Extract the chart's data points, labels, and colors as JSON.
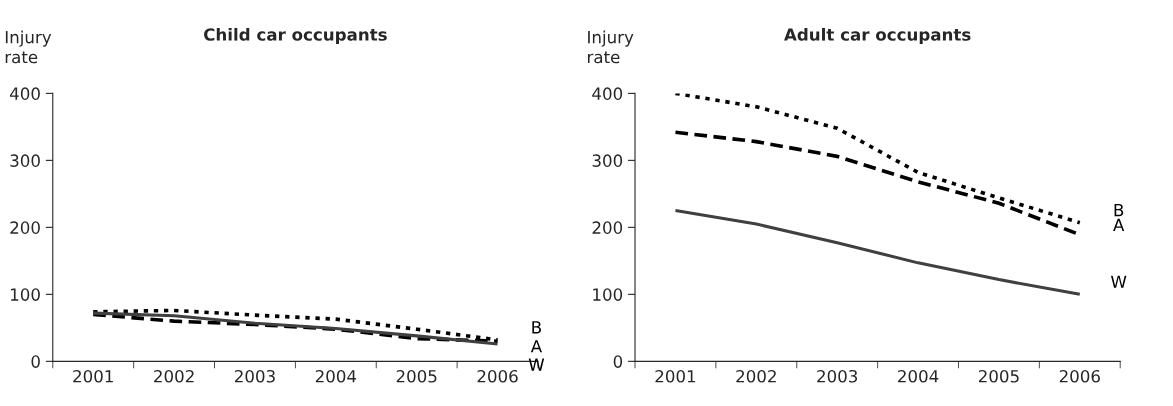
{
  "chart_data": [
    {
      "type": "line",
      "title": "Child car occupants",
      "ylabel": "Injury rate",
      "categories": [
        "2001",
        "2002",
        "2003",
        "2004",
        "2005",
        "2006"
      ],
      "ylim": [
        0,
        400
      ],
      "yticks": [
        0,
        100,
        200,
        300,
        400
      ],
      "legend": false,
      "grid": false,
      "series": [
        {
          "name": "B",
          "color": "#000000",
          "line_style": "dotted",
          "values": [
            74,
            76,
            69,
            63,
            48,
            32
          ]
        },
        {
          "name": "A",
          "color": "#000000",
          "line_style": "dashed",
          "values": [
            70,
            60,
            55,
            48,
            34,
            30
          ]
        },
        {
          "name": "W",
          "color": "#404040",
          "line_style": "solid",
          "values": [
            72,
            68,
            57,
            49,
            38,
            26
          ]
        }
      ]
    },
    {
      "type": "line",
      "title": "Adult car occupants",
      "ylabel": "Injury rate",
      "categories": [
        "2001",
        "2002",
        "2003",
        "2004",
        "2005",
        "2006"
      ],
      "ylim": [
        0,
        400
      ],
      "yticks": [
        0,
        100,
        200,
        300,
        400
      ],
      "legend": false,
      "grid": false,
      "series": [
        {
          "name": "B",
          "color": "#000000",
          "line_style": "dotted",
          "values": [
            400,
            380,
            348,
            282,
            244,
            207
          ]
        },
        {
          "name": "A",
          "color": "#000000",
          "line_style": "dashed",
          "values": [
            342,
            328,
            306,
            268,
            236,
            189
          ]
        },
        {
          "name": "W",
          "color": "#404040",
          "line_style": "solid",
          "values": [
            225,
            205,
            177,
            147,
            122,
            100
          ]
        }
      ]
    }
  ]
}
